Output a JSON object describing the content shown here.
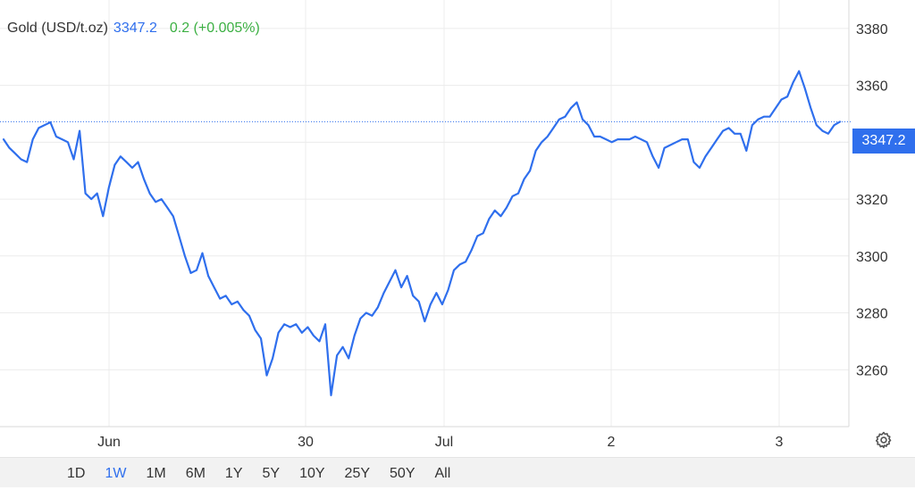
{
  "header": {
    "symbol": "Gold (USD/t.oz)",
    "price": "3347.2",
    "change": "0.2 (+0.005%)"
  },
  "price_tag": "3347.2",
  "colors": {
    "line": "#2f6fed",
    "price": "#2f6fed",
    "change": "#3cb043",
    "grid": "#ececec"
  },
  "ranges": {
    "items": [
      "1D",
      "1W",
      "1M",
      "6M",
      "1Y",
      "5Y",
      "10Y",
      "25Y",
      "50Y",
      "All"
    ],
    "active": "1W"
  },
  "settings_icon": "gear-icon",
  "chart_data": {
    "type": "line",
    "title": "Gold (USD/t.oz)",
    "xlabel": "",
    "ylabel": "",
    "ylim": [
      3240,
      3390
    ],
    "y_ticks": [
      3260,
      3280,
      3300,
      3320,
      3340,
      3360,
      3380
    ],
    "x_ticks": [
      "Jun",
      "30",
      "Jul",
      "2",
      "3"
    ],
    "grid": true,
    "current_price_line": 3347.2,
    "series": [
      {
        "values": [
          3341,
          3338,
          3336,
          3334,
          3333,
          3341,
          3345,
          3346,
          3347,
          3342,
          3341,
          3340,
          3334,
          3344,
          3322,
          3320,
          3322,
          3314,
          3324,
          3332,
          3335,
          3333,
          3331,
          3333,
          3327,
          3322,
          3319,
          3320,
          3317,
          3314,
          3307,
          3300,
          3294,
          3295,
          3301,
          3293,
          3289,
          3285,
          3286,
          3283,
          3284,
          3281,
          3279,
          3274,
          3271,
          3258,
          3264,
          3273,
          3276,
          3275,
          3276,
          3273,
          3275,
          3272,
          3270,
          3276,
          3251,
          3265,
          3268,
          3264,
          3272,
          3278,
          3280,
          3279,
          3282,
          3287,
          3291,
          3295,
          3289,
          3293,
          3286,
          3284,
          3277,
          3283,
          3287,
          3283,
          3288,
          3295,
          3297,
          3298,
          3302,
          3307,
          3308,
          3313,
          3316,
          3314,
          3317,
          3321,
          3322,
          3327,
          3330,
          3337,
          3340,
          3342,
          3345,
          3348,
          3349,
          3352,
          3354,
          3348,
          3346,
          3342,
          3342,
          3341,
          3340,
          3341,
          3341,
          3341,
          3342,
          3341,
          3340,
          3335,
          3331,
          3338,
          3339,
          3340,
          3341,
          3341,
          3333,
          3331,
          3335,
          3338,
          3341,
          3344,
          3345,
          3343,
          3343,
          3337,
          3346,
          3348,
          3349,
          3349,
          3352,
          3355,
          3356,
          3361,
          3365,
          3359,
          3352,
          3346,
          3344,
          3343,
          3346,
          3347.2
        ]
      }
    ]
  }
}
